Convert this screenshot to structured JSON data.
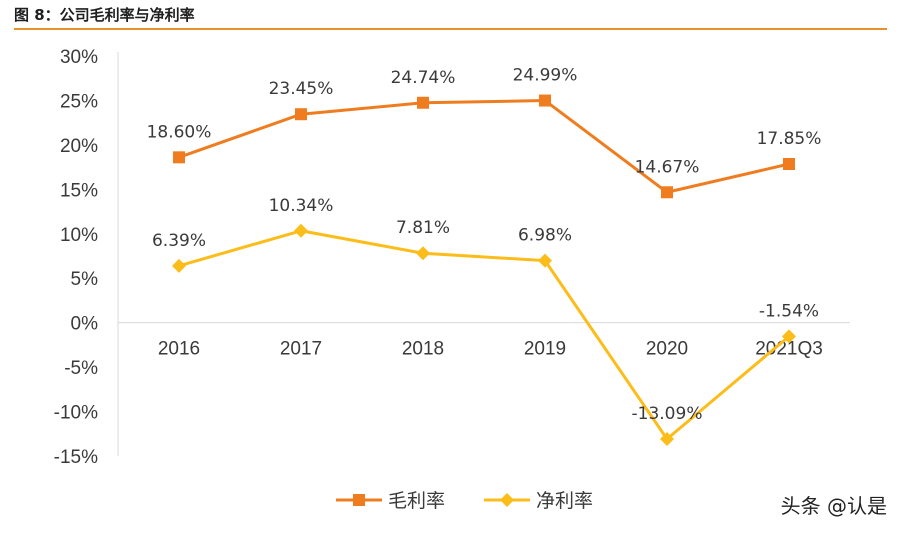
{
  "figure": {
    "title": "图 8：公司毛利率与净利率",
    "accent_color": "#e8902b"
  },
  "watermark": "头条 @认是",
  "chart_data": {
    "type": "line",
    "title": "公司毛利率与净利率",
    "categories": [
      "2016",
      "2017",
      "2018",
      "2019",
      "2020",
      "2021Q3"
    ],
    "ylim": [
      -15,
      30
    ],
    "yticks": [
      30,
      25,
      20,
      15,
      10,
      5,
      0,
      -5,
      -10,
      -15
    ],
    "ytick_labels": [
      "30%",
      "25%",
      "20%",
      "15%",
      "10%",
      "5%",
      "0%",
      "-5%",
      "-10%",
      "-15%"
    ],
    "xlabel": "",
    "ylabel": "",
    "grid": false,
    "legend_position": "bottom",
    "series": [
      {
        "name": "毛利率",
        "color": "#ef7d1f",
        "marker": "square",
        "values": [
          18.6,
          23.45,
          24.74,
          24.99,
          14.67,
          17.85
        ],
        "labels": [
          "18.60%",
          "23.45%",
          "24.74%",
          "24.99%",
          "14.67%",
          "17.85%"
        ]
      },
      {
        "name": "净利率",
        "color": "#fcbd1b",
        "marker": "diamond",
        "values": [
          6.39,
          10.34,
          7.81,
          6.98,
          -13.09,
          -1.54
        ],
        "labels": [
          "6.39%",
          "10.34%",
          "7.81%",
          "6.98%",
          "-13.09%",
          "-1.54%"
        ]
      }
    ]
  }
}
